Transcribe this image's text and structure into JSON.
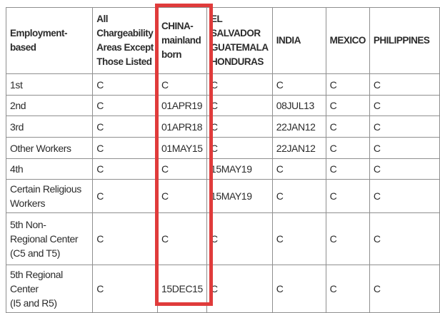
{
  "table": {
    "columns": [
      {
        "header": "Employment-\nbased"
      },
      {
        "header": "All\nChargeability\nAreas Except\nThose Listed"
      },
      {
        "header": "CHINA-\nmainland\nborn",
        "highlighted": true
      },
      {
        "header": "EL\nSALVADOR\nGUATEMALA\nHONDURAS"
      },
      {
        "header": "INDIA"
      },
      {
        "header": "MEXICO"
      },
      {
        "header": "PHILIPPINES"
      }
    ],
    "rows": [
      {
        "label": "1st",
        "values": [
          "C",
          "C",
          "C",
          "C",
          "C",
          "C"
        ]
      },
      {
        "label": "2nd",
        "values": [
          "C",
          "01APR19",
          "C",
          "08JUL13",
          "C",
          "C"
        ]
      },
      {
        "label": "3rd",
        "values": [
          "C",
          "01APR18",
          "C",
          "22JAN12",
          "C",
          "C"
        ]
      },
      {
        "label": "Other Workers",
        "values": [
          "C",
          "01MAY15",
          "C",
          "22JAN12",
          "C",
          "C"
        ]
      },
      {
        "label": "4th",
        "values": [
          "C",
          "C",
          "15MAY19",
          "C",
          "C",
          "C"
        ]
      },
      {
        "label": "Certain Religious\nWorkers",
        "values": [
          "C",
          "C",
          "15MAY19",
          "C",
          "C",
          "C"
        ]
      },
      {
        "label": "5th Non-\nRegional Center\n(C5 and T5)",
        "values": [
          "C",
          "C",
          "C",
          "C",
          "C",
          "C"
        ]
      },
      {
        "label": "5th Regional Center\n(I5 and R5)",
        "values": [
          "C",
          "15DEC15",
          "C",
          "C",
          "C",
          "C"
        ]
      }
    ]
  },
  "annotation": {
    "highlighted_column": "CHINA-mainland born",
    "highlight_color": "#e03b3b"
  },
  "colors": {
    "table_border": "#8f8f8f",
    "text": "#2b2b2b",
    "background": "#ffffff"
  }
}
